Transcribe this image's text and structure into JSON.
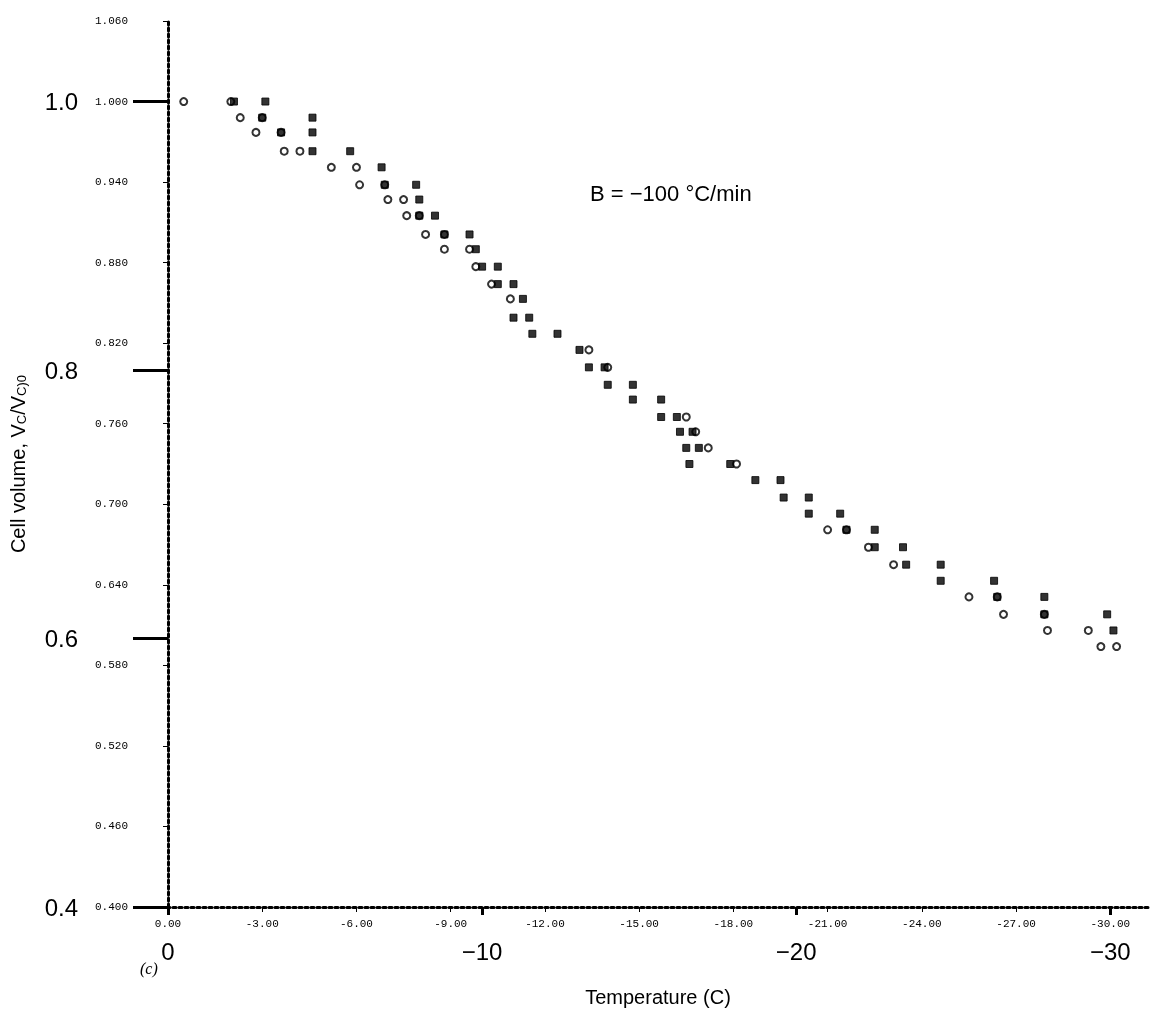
{
  "chart_data": {
    "type": "scatter",
    "xlabel": "Temperature (C)",
    "ylabel": "Cell volume, V$_{C}$/V$_{C)0}$",
    "annotations": [
      "B = −100 °C/min",
      "(c)"
    ],
    "xlim": [
      0,
      -31.2
    ],
    "x2ticks": [
      {
        "value": 0,
        "label": "0.00"
      },
      {
        "value": -3,
        "label": "-3.00"
      },
      {
        "value": -6,
        "label": "-6.00"
      },
      {
        "value": -9,
        "label": "-9.00"
      },
      {
        "value": -12,
        "label": "-12.00"
      },
      {
        "value": -15,
        "label": "-15.00"
      },
      {
        "value": -18,
        "label": "-18.00"
      },
      {
        "value": -21,
        "label": "-21.00"
      },
      {
        "value": -24,
        "label": "-24.00"
      },
      {
        "value": -27,
        "label": "-27.00"
      },
      {
        "value": -30,
        "label": "-30.00"
      }
    ],
    "x2lim": [
      0,
      -31.2
    ],
    "xticks": [
      0,
      {
        "value": -10,
        "label": "−10"
      },
      {
        "value": -20,
        "label": "−20"
      },
      {
        "value": -30,
        "label": "−30"
      }
    ],
    "ylim": [
      0.4,
      1.06
    ],
    "y2ticks": [
      {
        "value": 0.4,
        "label": "0.400"
      },
      {
        "value": 0.46,
        "label": "0.460"
      },
      {
        "value": 0.52,
        "label": "0.520"
      },
      {
        "value": 0.58,
        "label": "0.580"
      },
      {
        "value": 0.64,
        "label": "0.640"
      },
      {
        "value": 0.7,
        "label": "0.700"
      },
      {
        "value": 0.76,
        "label": "0.760"
      },
      {
        "value": 0.82,
        "label": "0.820"
      },
      {
        "value": 0.88,
        "label": "0.880"
      },
      {
        "value": 0.94,
        "label": "0.940"
      },
      {
        "value": 1.0,
        "label": "1.000"
      },
      {
        "value": 1.06,
        "label": "1.060"
      }
    ],
    "y2lim": [
      0.4,
      1.06
    ],
    "yticks": [
      0.4,
      0.6,
      0.8,
      {
        "value": 1.0,
        "label": "1.0"
      }
    ],
    "grid": false,
    "series": [
      {
        "color": "#000000",
        "marker": "circle",
        "x": [
          -0.5,
          -2.0,
          -2.3,
          -3.0,
          -2.8,
          -3.6,
          -3.7,
          -4.2,
          -5.2,
          -6.0,
          -6.1,
          -6.9,
          -7.0,
          -7.5,
          -7.6,
          -8.0,
          -8.2,
          -8.8,
          -8.8,
          -9.6,
          -9.8,
          -10.3,
          -10.9,
          -13.4,
          -14.0,
          -16.5,
          -16.8,
          -17.2,
          -18.1,
          -21.0,
          -21.6,
          -22.3,
          -23.1,
          -25.5,
          -26.4,
          -26.6,
          -27.9,
          -28.0,
          -29.3,
          -29.7,
          -30.2
        ],
        "values": [
          1.0,
          1.0,
          0.988,
          0.988,
          0.977,
          0.977,
          0.963,
          0.963,
          0.951,
          0.951,
          0.938,
          0.938,
          0.927,
          0.927,
          0.915,
          0.915,
          0.901,
          0.901,
          0.89,
          0.89,
          0.877,
          0.864,
          0.853,
          0.815,
          0.802,
          0.765,
          0.754,
          0.742,
          0.73,
          0.681,
          0.681,
          0.668,
          0.655,
          0.631,
          0.631,
          0.618,
          0.618,
          0.606,
          0.606,
          0.594,
          0.594
        ]
      },
      {
        "color": "#000000",
        "marker": "square",
        "x": [
          -2.1,
          -3.1,
          -3.0,
          -4.6,
          -3.6,
          -4.6,
          -4.6,
          -5.8,
          -6.8,
          -6.9,
          -7.9,
          -8.0,
          -8.0,
          -8.5,
          -8.8,
          -9.6,
          -9.8,
          -10.0,
          -10.5,
          -10.5,
          -11.0,
          -11.3,
          -11.0,
          -11.5,
          -11.6,
          -12.4,
          -13.1,
          -13.4,
          -13.9,
          -14.0,
          -14.8,
          -14.8,
          -15.7,
          -15.7,
          -16.2,
          -16.3,
          -16.7,
          -16.5,
          -16.9,
          -16.6,
          -17.9,
          -18.7,
          -19.5,
          -19.6,
          -20.4,
          -20.4,
          -21.4,
          -21.6,
          -22.5,
          -22.5,
          -23.4,
          -23.5,
          -24.6,
          -24.6,
          -26.3,
          -26.4,
          -27.9,
          -27.9,
          -29.9,
          -30.1
        ],
        "values": [
          1.0,
          1.0,
          0.988,
          0.988,
          0.977,
          0.977,
          0.963,
          0.963,
          0.951,
          0.938,
          0.938,
          0.927,
          0.915,
          0.915,
          0.901,
          0.901,
          0.89,
          0.877,
          0.877,
          0.864,
          0.864,
          0.853,
          0.839,
          0.839,
          0.827,
          0.827,
          0.815,
          0.802,
          0.802,
          0.789,
          0.789,
          0.778,
          0.778,
          0.765,
          0.765,
          0.754,
          0.754,
          0.742,
          0.742,
          0.73,
          0.73,
          0.718,
          0.718,
          0.705,
          0.705,
          0.693,
          0.693,
          0.681,
          0.681,
          0.668,
          0.668,
          0.655,
          0.655,
          0.643,
          0.643,
          0.631,
          0.631,
          0.618,
          0.618,
          0.606
        ]
      }
    ]
  }
}
